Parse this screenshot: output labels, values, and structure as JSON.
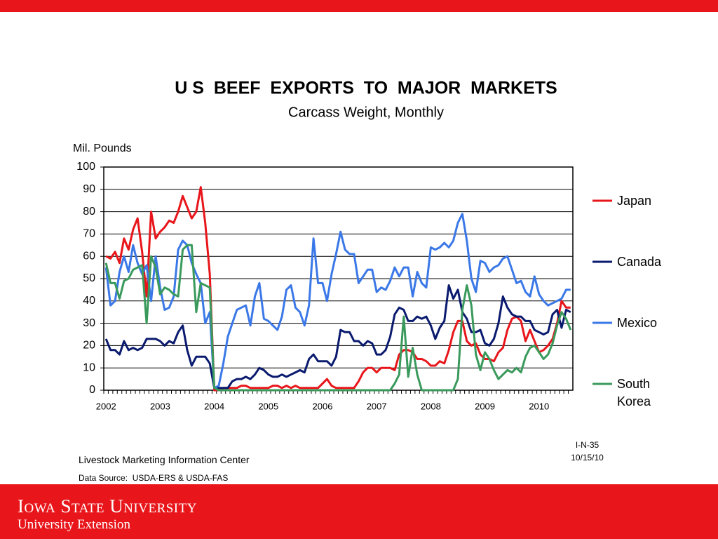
{
  "chart_data": {
    "type": "line",
    "title": "U S  BEEF  EXPORTS  TO  MAJOR  MARKETS",
    "subtitle": "Carcass Weight, Monthly",
    "y_axis_label": "Mil. Pounds",
    "categories": [
      "2002",
      null,
      null,
      null,
      null,
      null,
      null,
      null,
      null,
      null,
      null,
      null,
      "2003",
      null,
      null,
      null,
      null,
      null,
      null,
      null,
      null,
      null,
      null,
      null,
      "2004",
      null,
      null,
      null,
      null,
      null,
      null,
      null,
      null,
      null,
      null,
      null,
      "2005",
      null,
      null,
      null,
      null,
      null,
      null,
      null,
      null,
      null,
      null,
      null,
      "2006",
      null,
      null,
      null,
      null,
      null,
      null,
      null,
      null,
      null,
      null,
      null,
      "2007",
      null,
      null,
      null,
      null,
      null,
      null,
      null,
      null,
      null,
      null,
      null,
      "2008",
      null,
      null,
      null,
      null,
      null,
      null,
      null,
      null,
      null,
      null,
      null,
      "2009",
      null,
      null,
      null,
      null,
      null,
      null,
      null,
      null,
      null,
      null,
      null,
      "2010",
      null,
      null,
      null,
      null,
      null,
      null,
      null
    ],
    "ylim": [
      0,
      100
    ],
    "yticks": [
      0,
      10,
      20,
      30,
      40,
      50,
      60,
      70,
      80,
      90,
      100
    ],
    "grid": true,
    "legend": "right",
    "series": [
      {
        "name": "Japan",
        "color": "#e8161b",
        "values": [
          60,
          59,
          62,
          57,
          68,
          63,
          72,
          77,
          62,
          42,
          80,
          68,
          71,
          73,
          76,
          75,
          80,
          87,
          82,
          77,
          80,
          91,
          75,
          52,
          0,
          0,
          1,
          1,
          1,
          1,
          2,
          2,
          1,
          1,
          1,
          1,
          1,
          2,
          2,
          1,
          2,
          1,
          2,
          1,
          1,
          1,
          1,
          1,
          3,
          5,
          2,
          1,
          1,
          1,
          1,
          1,
          4,
          8,
          10,
          10,
          8,
          10,
          10,
          10,
          9,
          16,
          18,
          18,
          17,
          14,
          14,
          13,
          11,
          11,
          13,
          12,
          18,
          26,
          31,
          31,
          22,
          20,
          21,
          16,
          14,
          14,
          13,
          17,
          19,
          27,
          32,
          33,
          31,
          22,
          27,
          22,
          17,
          18,
          20,
          23,
          30,
          40,
          37,
          37
        ]
      },
      {
        "name": "Canada",
        "color": "#0a1a6e",
        "values": [
          23,
          18,
          18,
          16,
          22,
          18,
          19,
          18,
          19,
          23,
          23,
          23,
          22,
          20,
          22,
          21,
          26,
          29,
          18,
          11,
          15,
          15,
          15,
          12,
          1,
          1,
          1,
          1,
          4,
          5,
          5,
          6,
          5,
          7,
          10,
          9,
          7,
          6,
          6,
          7,
          6,
          7,
          8,
          9,
          8,
          14,
          16,
          13,
          13,
          13,
          11,
          15,
          27,
          26,
          26,
          22,
          22,
          20,
          22,
          21,
          16,
          16,
          18,
          24,
          34,
          37,
          36,
          31,
          31,
          33,
          32,
          33,
          29,
          23,
          28,
          31,
          47,
          41,
          45,
          35,
          32,
          26,
          26,
          27,
          21,
          20,
          23,
          30,
          42,
          37,
          34,
          33,
          33,
          31,
          31,
          27,
          26,
          25,
          26,
          34,
          36,
          28,
          36,
          35
        ]
      },
      {
        "name": "Mexico",
        "color": "#3b78e7",
        "values": [
          55,
          38,
          40,
          53,
          60,
          53,
          65,
          57,
          52,
          56,
          40,
          60,
          46,
          36,
          37,
          42,
          63,
          67,
          65,
          57,
          52,
          48,
          30,
          35,
          1,
          2,
          12,
          24,
          30,
          36,
          37,
          38,
          29,
          42,
          48,
          32,
          31,
          29,
          27,
          33,
          45,
          47,
          37,
          35,
          29,
          38,
          68,
          48,
          48,
          40,
          52,
          61,
          71,
          63,
          61,
          61,
          48,
          51,
          54,
          54,
          44,
          46,
          45,
          49,
          55,
          51,
          55,
          55,
          42,
          53,
          48,
          46,
          64,
          63,
          64,
          66,
          64,
          67,
          75,
          79,
          67,
          50,
          44,
          58,
          57,
          53,
          55,
          56,
          59,
          60,
          54,
          48,
          49,
          44,
          42,
          51,
          43,
          40,
          38,
          39,
          40,
          41,
          45,
          45
        ]
      },
      {
        "name": "South Korea",
        "color": "#3a9a5c",
        "values": [
          57,
          48,
          48,
          41,
          49,
          50,
          54,
          55,
          56,
          30,
          60,
          55,
          43,
          46,
          45,
          43,
          42,
          63,
          65,
          65,
          35,
          48,
          47,
          46,
          1,
          0,
          0,
          0,
          0,
          0,
          0,
          0,
          0,
          0,
          0,
          0,
          0,
          0,
          0,
          0,
          0,
          0,
          0,
          0,
          0,
          0,
          0,
          0,
          0,
          0,
          0,
          0,
          0,
          0,
          0,
          0,
          0,
          0,
          0,
          0,
          0,
          0,
          0,
          0,
          3,
          7,
          33,
          6,
          19,
          7,
          0,
          0,
          0,
          0,
          0,
          0,
          0,
          0,
          5,
          36,
          47,
          38,
          16,
          9,
          17,
          14,
          9,
          5,
          7,
          9,
          8,
          10,
          8,
          15,
          19,
          20,
          17,
          14,
          16,
          21,
          29,
          35,
          32,
          27
        ]
      }
    ]
  },
  "slide": {
    "chart_id": "I-N-35",
    "date": "10/15/10",
    "source_org": "Livestock Marketing Information Center",
    "data_source": "Data Source:  USDA-ERS & USDA-FAS",
    "university": "Iowa State University",
    "unit": "University Extension"
  }
}
